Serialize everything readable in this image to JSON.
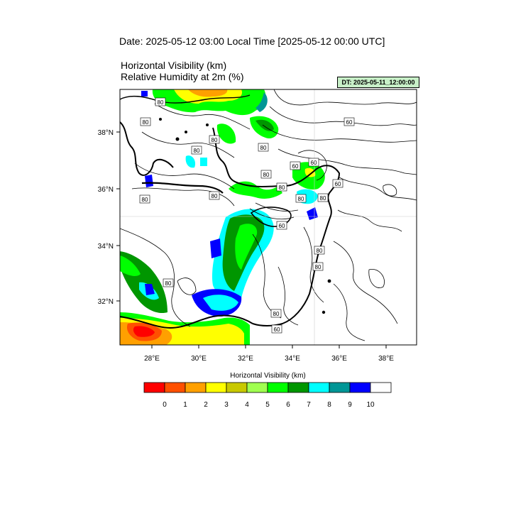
{
  "header": {
    "date_line": "Date: 2025-05-12  03:00 Local Time [2025-05-12  00:00 UTC]",
    "field1": "Horizontal Visibility   (km)",
    "field2": "Relative Humidity at 2m   (%)",
    "dt_badge": "DT: 2025-05-11_12:00:00"
  },
  "map": {
    "lon_range": [
      26.7,
      39.5
    ],
    "lat_range": [
      30.4,
      39.4
    ],
    "lon_ticks": [
      "28°E",
      "30°E",
      "32°E",
      "34°E",
      "36°E",
      "38°E"
    ],
    "lat_ticks": [
      "38°N",
      "36°N",
      "34°N",
      "32°N"
    ],
    "contour_labels": [
      "80",
      "80",
      "80",
      "80",
      "80",
      "80",
      "80",
      "60",
      "60",
      "80",
      "80",
      "80",
      "80",
      "60",
      "60",
      "80",
      "80",
      "80",
      "80",
      "60",
      "60"
    ],
    "colors": {
      "ocean_clear": "#ffffff",
      "coast": "#000000"
    }
  },
  "colorbar": {
    "title": "Horizontal Visibility  (km)",
    "labels": [
      "0",
      "1",
      "2",
      "3",
      "4",
      "5",
      "6",
      "7",
      "8",
      "9",
      "10"
    ],
    "colors": [
      "#ff0000",
      "#ff5000",
      "#ffa000",
      "#ffff00",
      "#c8c800",
      "#a0ff50",
      "#00ff00",
      "#009600",
      "#00ffff",
      "#009696",
      "#0000ff",
      "#ffffff"
    ]
  }
}
